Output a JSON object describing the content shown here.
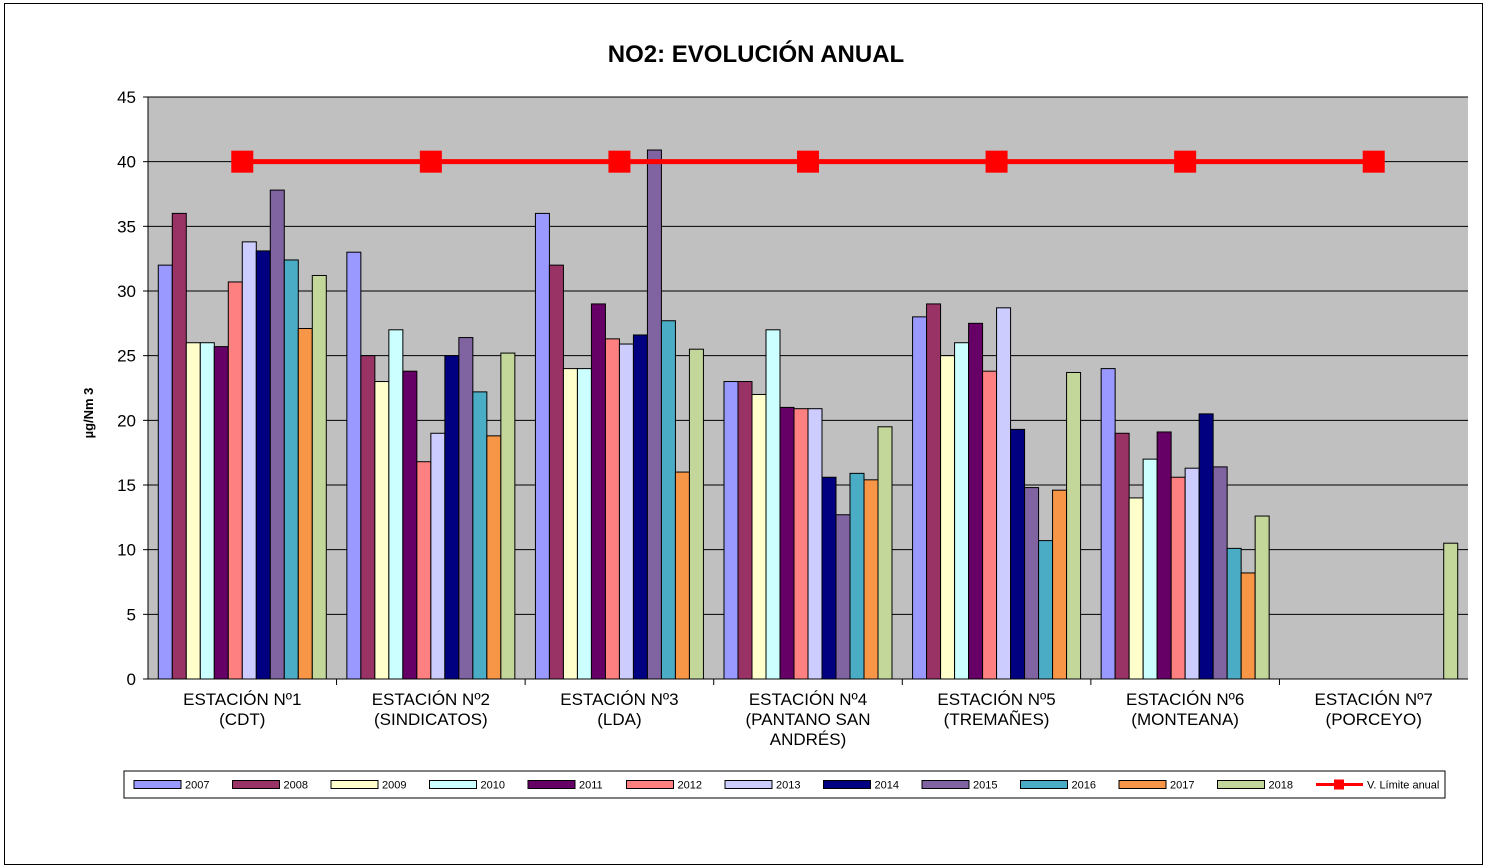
{
  "chart_data": {
    "type": "bar",
    "title": "NO2:  EVOLUCIÓN ANUAL",
    "xlabel": "",
    "ylabel": "µg/Nm 3",
    "ylim": [
      0,
      45
    ],
    "yticks": [
      0,
      5,
      10,
      15,
      20,
      25,
      30,
      35,
      40,
      45
    ],
    "grid": true,
    "legend_position": "bottom",
    "categories": [
      [
        "ESTACIÓN Nº1",
        "(CDT)"
      ],
      [
        "ESTACIÓN Nº2",
        "(SINDICATOS)"
      ],
      [
        "ESTACIÓN Nº3",
        "(LDA)"
      ],
      [
        "ESTACIÓN Nº4",
        "(PANTANO SAN",
        "ANDRÉS)"
      ],
      [
        "ESTACIÓN Nº5",
        "(TREMAÑES)"
      ],
      [
        "ESTACIÓN Nº6",
        "(MONTEANA)"
      ],
      [
        "ESTACIÓN Nº7",
        "(PORCEYO)"
      ]
    ],
    "series": [
      {
        "name": "2007",
        "color": "#9999FF",
        "values": [
          32,
          33,
          36,
          23,
          28,
          24,
          null
        ]
      },
      {
        "name": "2008",
        "color": "#993366",
        "values": [
          36,
          25,
          32,
          23,
          29,
          19,
          null
        ]
      },
      {
        "name": "2009",
        "color": "#FFFFCC",
        "values": [
          26,
          23,
          24,
          22,
          25,
          14,
          null
        ]
      },
      {
        "name": "2010",
        "color": "#CCFFFF",
        "values": [
          26,
          27,
          24,
          27,
          26,
          17,
          null
        ]
      },
      {
        "name": "2011",
        "color": "#660066",
        "values": [
          25.7,
          23.8,
          29,
          21,
          27.5,
          19.1,
          null
        ]
      },
      {
        "name": "2012",
        "color": "#FF8080",
        "values": [
          30.7,
          16.8,
          26.3,
          20.9,
          23.8,
          15.6,
          null
        ]
      },
      {
        "name": "2013",
        "color": "#CCCCFF",
        "values": [
          33.8,
          19,
          25.9,
          20.9,
          28.7,
          16.3,
          null
        ]
      },
      {
        "name": "2014",
        "color": "#000080",
        "values": [
          33.1,
          25,
          26.6,
          15.6,
          19.3,
          20.5,
          null
        ]
      },
      {
        "name": "2015",
        "color": "#8064A2",
        "values": [
          37.8,
          26.4,
          40.9,
          12.7,
          14.8,
          16.4,
          null
        ]
      },
      {
        "name": "2016",
        "color": "#4BACC6",
        "values": [
          32.4,
          22.2,
          27.7,
          15.9,
          10.7,
          10.1,
          null
        ]
      },
      {
        "name": "2017",
        "color": "#F79646",
        "values": [
          27.1,
          18.8,
          16,
          15.4,
          14.6,
          8.2,
          null
        ]
      },
      {
        "name": "2018",
        "color": "#C4D79B",
        "values": [
          31.2,
          25.2,
          25.5,
          19.5,
          23.7,
          12.6,
          10.5
        ]
      }
    ],
    "line_series": {
      "name": "V. Límite anual",
      "color": "#FF0000",
      "values": [
        40,
        40,
        40,
        40,
        40,
        40,
        40
      ]
    }
  }
}
